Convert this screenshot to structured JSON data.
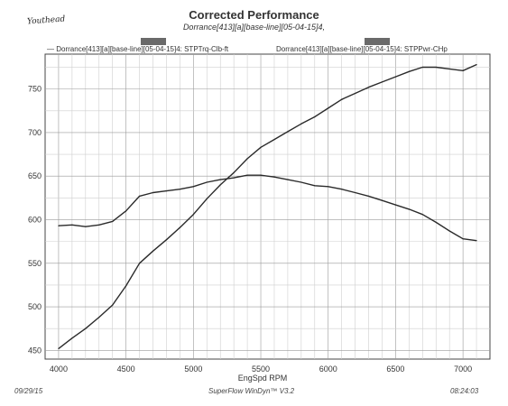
{
  "page": {
    "signature": "Youthead",
    "legend_left": "Dorrance[413][a][base-line][05-04-15]4: STPTrq-Clb-ft",
    "legend_right": "Dorrance[413][a][base-line][05-04-15]4: STPPwr-CHp",
    "footer_date": "09/29/15",
    "footer_software": "SuperFlow WinDyn™ V3.2",
    "footer_time": "08:24:03"
  },
  "chart_data": {
    "type": "line",
    "title": "Corrected Performance",
    "subtitle": "Dorrance[413][a][base-line][05-04-15]4,",
    "xlabel": "EngSpd RPM",
    "ylabel": "",
    "xlim": [
      3900,
      7200
    ],
    "ylim": [
      440,
      790
    ],
    "xticks": [
      4000,
      4500,
      5000,
      5500,
      6000,
      6500,
      7000
    ],
    "yticks": [
      450,
      500,
      550,
      600,
      650,
      700,
      750
    ],
    "grid": true,
    "line_color": "#2a2a2a",
    "series": [
      {
        "name": "STPTrq-Clb-ft",
        "x": [
          4000,
          4100,
          4200,
          4300,
          4400,
          4500,
          4600,
          4700,
          4800,
          4900,
          5000,
          5100,
          5200,
          5300,
          5400,
          5500,
          5600,
          5700,
          5800,
          5900,
          6000,
          6100,
          6200,
          6300,
          6400,
          6500,
          6600,
          6700,
          6800,
          6900,
          7000,
          7100
        ],
        "values": [
          593,
          594,
          592,
          594,
          598,
          610,
          627,
          631,
          633,
          635,
          638,
          643,
          646,
          648,
          651,
          651,
          649,
          646,
          643,
          639,
          638,
          635,
          631,
          627,
          622,
          617,
          612,
          606,
          597,
          587,
          578,
          576
        ]
      },
      {
        "name": "STPPwr-CHp",
        "x": [
          4000,
          4100,
          4200,
          4300,
          4400,
          4500,
          4600,
          4700,
          4800,
          4900,
          5000,
          5100,
          5200,
          5300,
          5400,
          5500,
          5600,
          5700,
          5800,
          5900,
          6000,
          6100,
          6200,
          6300,
          6400,
          6500,
          6600,
          6700,
          6800,
          6900,
          7000,
          7100
        ],
        "values": [
          452,
          464,
          475,
          488,
          502,
          524,
          550,
          564,
          577,
          591,
          606,
          624,
          640,
          654,
          670,
          683,
          692,
          701,
          710,
          718,
          728,
          738,
          745,
          752,
          758,
          764,
          770,
          775,
          775,
          773,
          771,
          778
        ]
      }
    ]
  }
}
